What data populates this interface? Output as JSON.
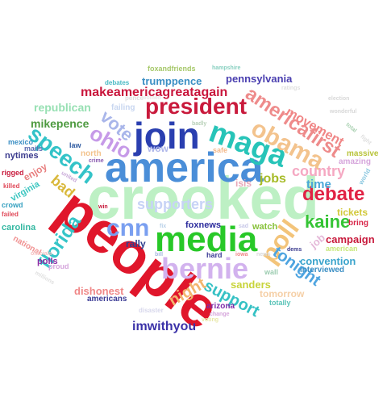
{
  "words": [
    {
      "text": "crooked",
      "color": "#bdf0c4"
    },
    {
      "text": "people",
      "color": "#e0162b"
    },
    {
      "text": "america",
      "color": "#4a8ed8"
    },
    {
      "text": "media",
      "color": "#28c828"
    },
    {
      "text": "join",
      "color": "#2a3fb0"
    },
    {
      "text": "president",
      "color": "#c91a3c"
    },
    {
      "text": "maga",
      "color": "#27c4b8"
    },
    {
      "text": "bernie",
      "color": "#d2b2ee"
    },
    {
      "text": "obama",
      "color": "#f3c38d"
    },
    {
      "text": "cnn",
      "color": "#7a9ff0"
    },
    {
      "text": "speech",
      "color": "#33c3c8"
    },
    {
      "text": "americafirst",
      "color": "#ee8b8b"
    },
    {
      "text": "ohio",
      "color": "#c69ae8"
    },
    {
      "text": "poll",
      "color": "#f3c47a"
    },
    {
      "text": "debate",
      "color": "#e12244"
    },
    {
      "text": "florida",
      "color": "#35c5c8"
    },
    {
      "text": "makeamericagreatagain",
      "color": "#c9163c"
    },
    {
      "text": "vote",
      "color": "#a9b6ea"
    },
    {
      "text": "country",
      "color": "#f5a8c2"
    },
    {
      "text": "supporters",
      "color": "#c7d3f6"
    },
    {
      "text": "kaine",
      "color": "#35c435"
    },
    {
      "text": "support",
      "color": "#35c1c4"
    },
    {
      "text": "tonight",
      "color": "#4ea4e0"
    },
    {
      "text": "night",
      "color": "#f3b56e"
    },
    {
      "text": "movement",
      "color": "#f08686"
    },
    {
      "text": "jobs",
      "color": "#a6bb27"
    },
    {
      "text": "time",
      "color": "#4aa7d8"
    },
    {
      "text": "mikepence",
      "color": "#4e9a40"
    },
    {
      "text": "republican",
      "color": "#97e0b3"
    },
    {
      "text": "bad",
      "color": "#d9b83a"
    },
    {
      "text": "trumppence",
      "color": "#3b8fc4"
    },
    {
      "text": "pennsylvania",
      "color": "#4a3fb0"
    },
    {
      "text": "imwithyou",
      "color": "#3b32a8"
    },
    {
      "text": "dishonest",
      "color": "#f08888"
    },
    {
      "text": "sanders",
      "color": "#c8d43a"
    },
    {
      "text": "convention",
      "color": "#3ba4cc"
    },
    {
      "text": "campaign",
      "color": "#c81a3c"
    },
    {
      "text": "tickets",
      "color": "#d2c83a"
    },
    {
      "text": "tomorrow",
      "color": "#f5cfa6"
    },
    {
      "text": "job",
      "color": "#e4b8d8"
    },
    {
      "text": "enjoy",
      "color": "#e88080"
    },
    {
      "text": "watch",
      "color": "#88c23a"
    },
    {
      "text": "rally",
      "color": "#2e3e8e"
    },
    {
      "text": "foxnews",
      "color": "#2b2b9c"
    },
    {
      "text": "isis",
      "color": "#e8a8b8"
    },
    {
      "text": "wow",
      "color": "#aeb6ea"
    },
    {
      "text": "nytimes",
      "color": "#3b3b8e"
    },
    {
      "text": "virginia",
      "color": "#3cc6c0"
    },
    {
      "text": "carolina",
      "color": "#35b8a2"
    },
    {
      "text": "polls",
      "color": "#8c2aa4"
    },
    {
      "text": "americans",
      "color": "#3d3d96"
    },
    {
      "text": "failing",
      "color": "#c8d6f0"
    },
    {
      "text": "interviewed",
      "color": "#3b8fc4"
    },
    {
      "text": "amazing",
      "color": "#d6a6dc"
    },
    {
      "text": "massive",
      "color": "#b8c33a"
    },
    {
      "text": "bring",
      "color": "#d8264a"
    },
    {
      "text": "american",
      "color": "#c8e87a"
    },
    {
      "text": "national",
      "color": "#f09090"
    },
    {
      "text": "arizona",
      "color": "#7e2aa8"
    },
    {
      "text": "hard",
      "color": "#3d3d96"
    },
    {
      "text": "wall",
      "color": "#9cccb0"
    },
    {
      "text": "totally",
      "color": "#5ac4b8"
    },
    {
      "text": "safe",
      "color": "#f3b88a"
    },
    {
      "text": "foxandfriends",
      "color": "#a6c86a"
    },
    {
      "text": "debates",
      "color": "#4abac4"
    },
    {
      "text": "pence",
      "color": "#e0e0e0"
    },
    {
      "text": "women",
      "color": "#e8e8e8"
    },
    {
      "text": "hampshire",
      "color": "#88d0c0"
    },
    {
      "text": "ratings",
      "color": "#e0e0e0"
    },
    {
      "text": "election",
      "color": "#d8d8d8"
    },
    {
      "text": "wonderful",
      "color": "#d8d8d8"
    },
    {
      "text": "total",
      "color": "#a8d0b0"
    },
    {
      "text": "fight",
      "color": "#e0e0e0"
    },
    {
      "text": "world",
      "color": "#8cc8e0"
    },
    {
      "text": "badly",
      "color": "#b8d0b8"
    },
    {
      "text": "north",
      "color": "#f3c38d"
    },
    {
      "text": "law",
      "color": "#2e5aa0"
    },
    {
      "text": "mexico",
      "color": "#3b8fc4"
    },
    {
      "text": "mails",
      "color": "#5a6ab0"
    },
    {
      "text": "crime",
      "color": "#8a5ab0"
    },
    {
      "text": "united",
      "color": "#c8a8d8"
    },
    {
      "text": "rigged",
      "color": "#c81a3c"
    },
    {
      "text": "killed",
      "color": "#e04a5a"
    },
    {
      "text": "crowd",
      "color": "#35a0c0"
    },
    {
      "text": "failed",
      "color": "#e04a5a"
    },
    {
      "text": "win",
      "color": "#c81a3c"
    },
    {
      "text": "fix",
      "color": "#b8d0e8"
    },
    {
      "text": "sad",
      "color": "#c8c8e8"
    },
    {
      "text": "iowa",
      "color": "#f08888"
    },
    {
      "text": "dems",
      "color": "#3b3b8e"
    },
    {
      "text": "news",
      "color": "#d8d8d8"
    },
    {
      "text": "bill",
      "color": "#a8b8e0"
    },
    {
      "text": "officials",
      "color": "#f5c0c0"
    },
    {
      "text": "proud",
      "color": "#d6a6dc"
    },
    {
      "text": "millions",
      "color": "#e0e0e0"
    },
    {
      "text": "disaster",
      "color": "#d8d8ec"
    },
    {
      "text": "change",
      "color": "#d6a6dc"
    },
    {
      "text": "voting",
      "color": "#e8e8a8"
    }
  ]
}
